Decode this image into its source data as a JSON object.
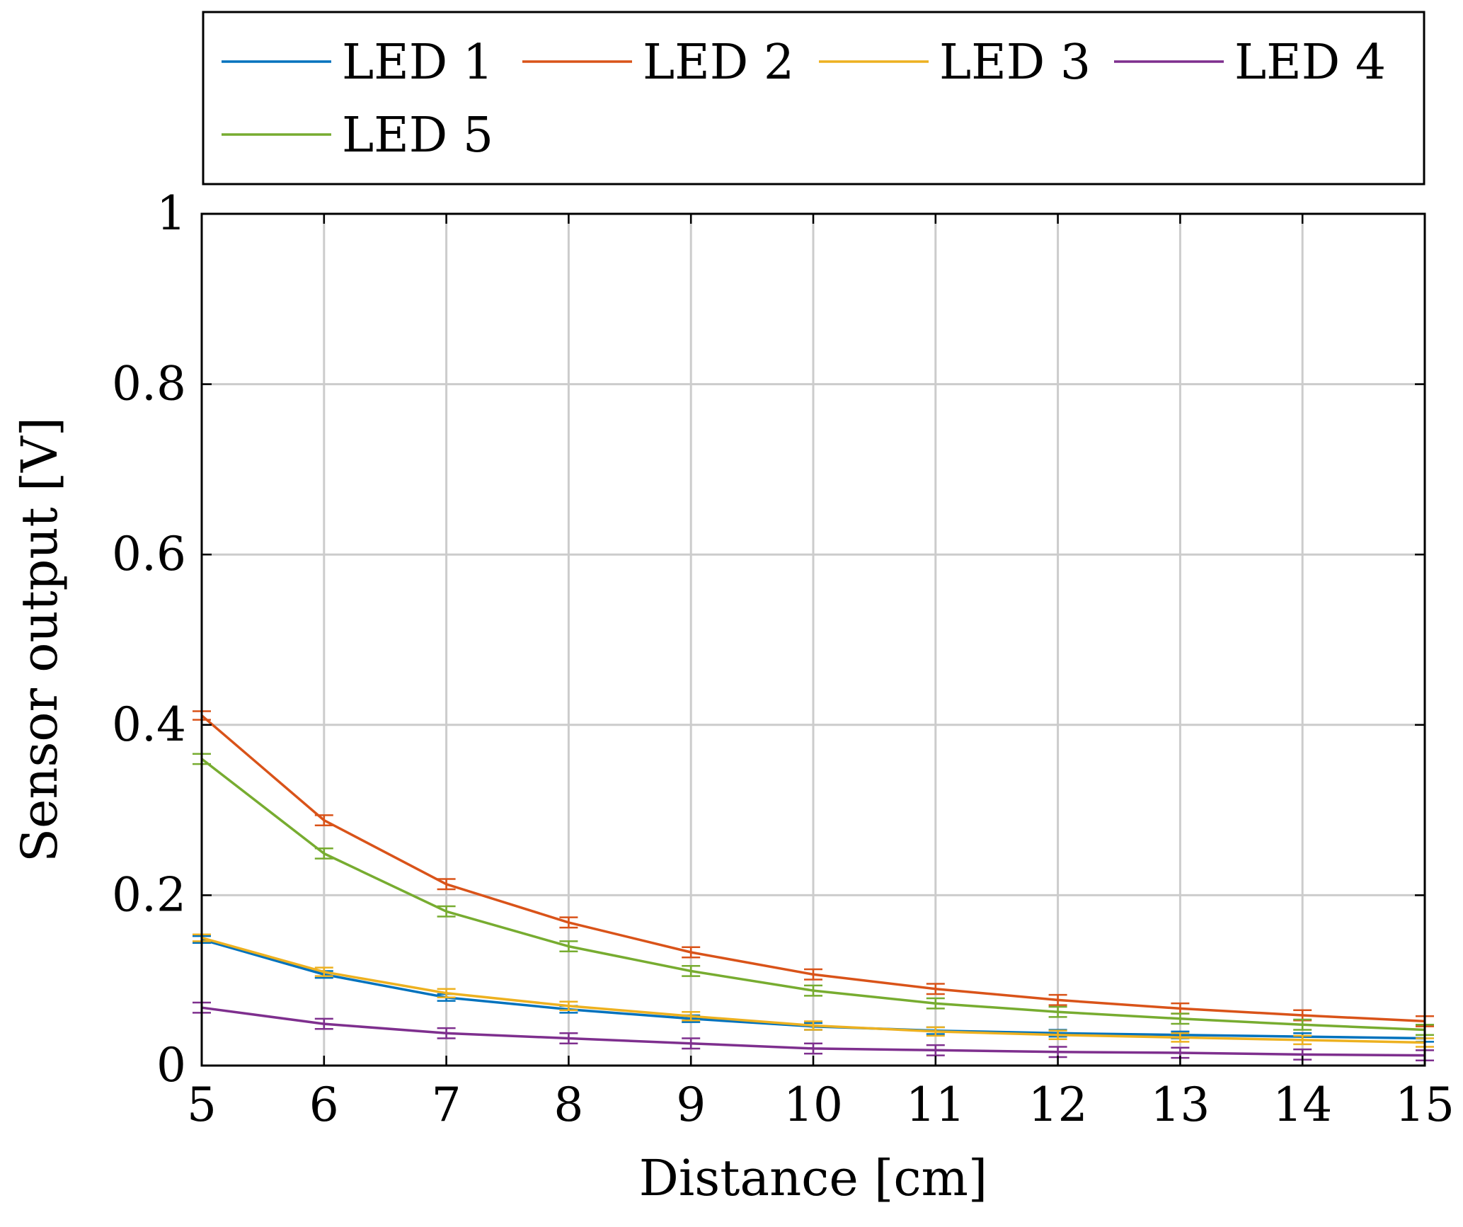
{
  "chart_data": {
    "type": "line",
    "xlabel": "Distance [cm]",
    "ylabel": "Sensor output [V]",
    "xlim": [
      5,
      15
    ],
    "ylim": [
      0,
      1
    ],
    "x": [
      5,
      6,
      7,
      8,
      9,
      10,
      11,
      12,
      13,
      14,
      15
    ],
    "x_ticks": [
      "5",
      "6",
      "7",
      "8",
      "9",
      "10",
      "11",
      "12",
      "13",
      "14",
      "15"
    ],
    "y_ticks": [
      "0",
      "0.2",
      "0.4",
      "0.6",
      "0.8",
      "1"
    ],
    "y_tick_values": [
      0,
      0.2,
      0.4,
      0.6,
      0.8,
      1
    ],
    "grid": true,
    "legend_position": "top",
    "error_bars": true,
    "series": [
      {
        "name": "LED 1",
        "color": "#0072BD",
        "values": [
          0.148,
          0.107,
          0.08,
          0.066,
          0.055,
          0.046,
          0.041,
          0.038,
          0.036,
          0.034,
          0.032
        ],
        "errors": [
          0.004,
          0.004,
          0.004,
          0.004,
          0.004,
          0.004,
          0.004,
          0.004,
          0.004,
          0.004,
          0.004
        ]
      },
      {
        "name": "LED 2",
        "color": "#D95319",
        "values": [
          0.411,
          0.288,
          0.213,
          0.168,
          0.133,
          0.107,
          0.09,
          0.077,
          0.067,
          0.059,
          0.052
        ],
        "errors": [
          0.005,
          0.006,
          0.006,
          0.006,
          0.006,
          0.006,
          0.006,
          0.006,
          0.006,
          0.006,
          0.006
        ]
      },
      {
        "name": "LED 3",
        "color": "#EDB120",
        "values": [
          0.15,
          0.11,
          0.085,
          0.07,
          0.058,
          0.047,
          0.04,
          0.036,
          0.033,
          0.03,
          0.027
        ],
        "errors": [
          0.004,
          0.005,
          0.005,
          0.005,
          0.005,
          0.005,
          0.005,
          0.005,
          0.005,
          0.005,
          0.005
        ]
      },
      {
        "name": "LED 4",
        "color": "#7E2F8E",
        "values": [
          0.068,
          0.049,
          0.038,
          0.032,
          0.026,
          0.02,
          0.018,
          0.016,
          0.015,
          0.013,
          0.012
        ],
        "errors": [
          0.006,
          0.006,
          0.006,
          0.006,
          0.006,
          0.006,
          0.006,
          0.006,
          0.006,
          0.006,
          0.006
        ]
      },
      {
        "name": "LED 5",
        "color": "#77AC30",
        "values": [
          0.36,
          0.249,
          0.181,
          0.14,
          0.111,
          0.088,
          0.073,
          0.063,
          0.055,
          0.048,
          0.042
        ],
        "errors": [
          0.006,
          0.006,
          0.006,
          0.006,
          0.006,
          0.006,
          0.006,
          0.006,
          0.006,
          0.006,
          0.006
        ]
      }
    ]
  }
}
